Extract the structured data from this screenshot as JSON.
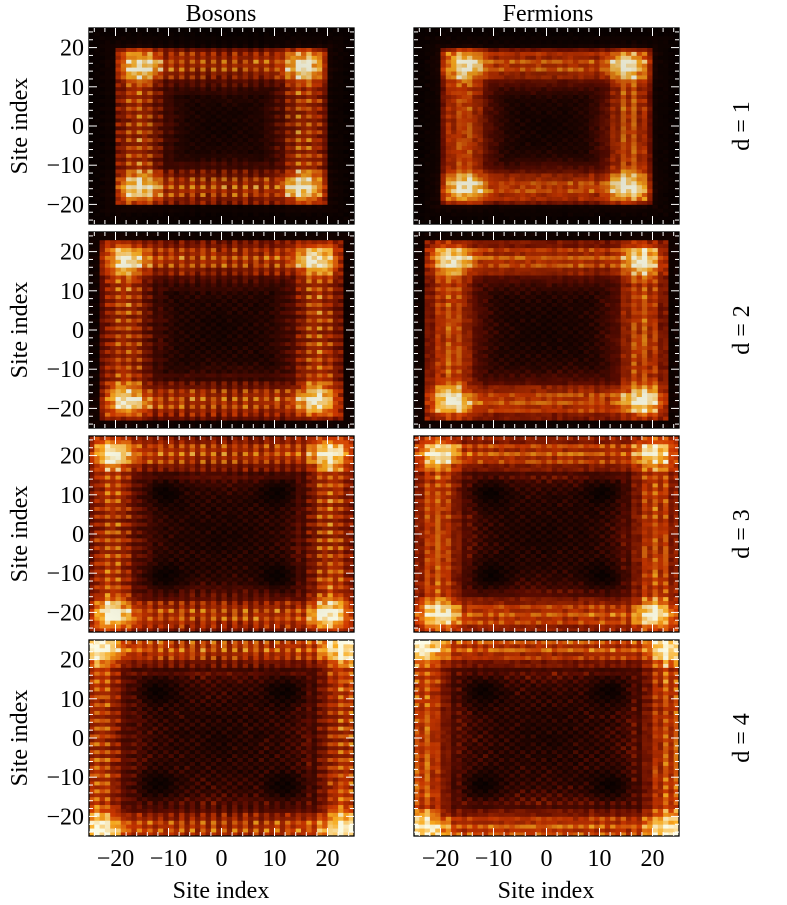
{
  "figure": {
    "column_titles": [
      "Bosons",
      "Fermions"
    ],
    "row_labels": [
      "d = 1",
      "d = 2",
      "d = 3",
      "d = 4"
    ],
    "axis_label": "Site index"
  },
  "chart_data": {
    "type": "heatmap",
    "grid": false,
    "colormap": "black-red-yellow-white (afmhot)",
    "colors": {
      "low": "#000000",
      "mid_low": "#6a0d00",
      "mid": "#d43a00",
      "mid_high": "#ffb020",
      "high": "#ffffe8"
    },
    "xlim": [
      -25,
      25
    ],
    "ylim": [
      -25,
      25
    ],
    "x_ticks": [
      -20,
      -10,
      0,
      10,
      20
    ],
    "y_ticks": [
      -20,
      -10,
      0,
      10,
      20
    ],
    "xlabel": "Site index",
    "ylabel": "Site index",
    "panels": [
      {
        "column": "Bosons",
        "row": "d = 1",
        "d": 1
      },
      {
        "column": "Fermions",
        "row": "d = 1",
        "d": 1
      },
      {
        "column": "Bosons",
        "row": "d = 2",
        "d": 2
      },
      {
        "column": "Fermions",
        "row": "d = 2",
        "d": 2
      },
      {
        "column": "Bosons",
        "row": "d = 3",
        "d": 3
      },
      {
        "column": "Fermions",
        "row": "d = 3",
        "d": 3
      },
      {
        "column": "Bosons",
        "row": "d = 4",
        "d": 4
      },
      {
        "column": "Fermions",
        "row": "d = 4",
        "d": 4
      }
    ]
  }
}
